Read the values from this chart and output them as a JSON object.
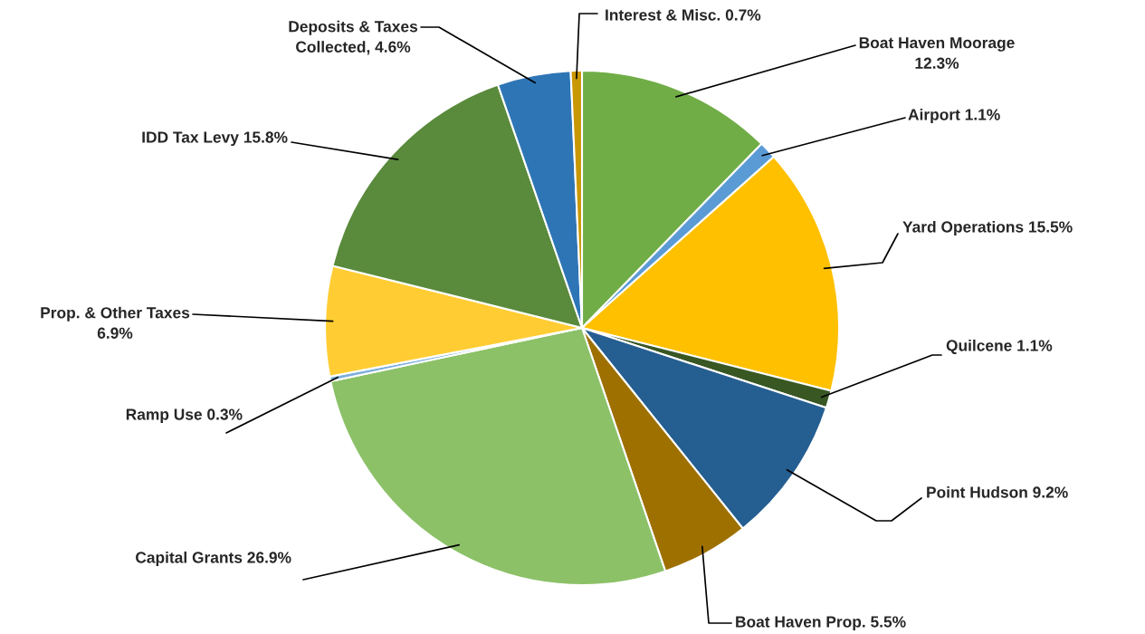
{
  "chart_data": {
    "type": "pie",
    "categories": [
      "Boat Haven Moorage",
      "Airport",
      "Yard Operations",
      "Quilcene",
      "Point Hudson",
      "Boat Haven Prop.",
      "Capital Grants",
      "Ramp Use",
      "Prop. & Other Taxes",
      "IDD Tax Levy",
      "Deposits & Taxes Collected",
      "Interest & Misc."
    ],
    "values": [
      12.3,
      1.1,
      15.5,
      1.1,
      9.2,
      5.5,
      26.9,
      0.3,
      6.9,
      15.8,
      4.6,
      0.7
    ],
    "value_labels": [
      "12.3%",
      "1.1%",
      "15.5%",
      "1.1%",
      "9.2%",
      "5.5%",
      "26.9%",
      "0.3%",
      "6.9%",
      "15.8%",
      "4.6%",
      "0.7%"
    ],
    "colors": [
      "#70ad47",
      "#5b9bd5",
      "#ffc000",
      "#385723",
      "#255e91",
      "#9e7000",
      "#8cc168",
      "#7cafdd",
      "#ffcd33",
      "#5a8a3c",
      "#2e75b6",
      "#c99700"
    ],
    "legend": false
  }
}
